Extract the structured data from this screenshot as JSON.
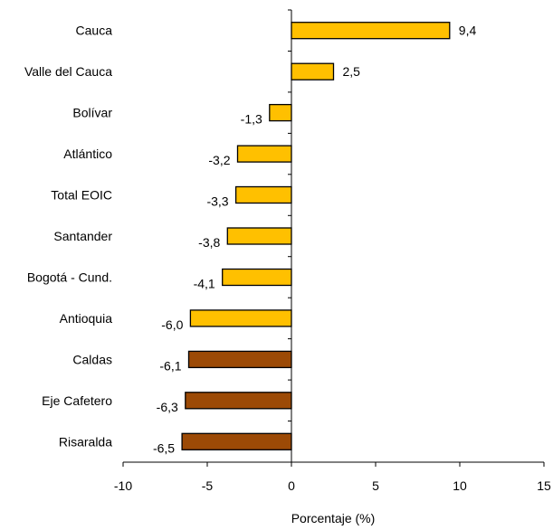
{
  "chart_data": {
    "type": "bar",
    "orientation": "horizontal",
    "categories": [
      "Cauca",
      "Valle del Cauca",
      "Bolívar",
      "Atlántico",
      "Total EOIC",
      "Santander",
      "Bogotá - Cund.",
      "Antioquia",
      "Caldas",
      "Eje Cafetero",
      "Risaralda"
    ],
    "values": [
      9.4,
      2.5,
      -1.3,
      -3.2,
      -3.3,
      -3.8,
      -4.1,
      -6.0,
      -6.1,
      -6.3,
      -6.5
    ],
    "value_labels": [
      "9,4",
      "2,5",
      "-1,3",
      "-3,2",
      "-3,3",
      "-3,8",
      "-4,1",
      "-6,0",
      "-6,1",
      "-6,3",
      "-6,5"
    ],
    "bar_colors": [
      "#FFC000",
      "#FFC000",
      "#FFC000",
      "#FFC000",
      "#FFC000",
      "#FFC000",
      "#FFC000",
      "#FFC000",
      "#9C4A06",
      "#9C4A06",
      "#9C4A06"
    ],
    "xlim": [
      -10,
      15
    ],
    "xticks": [
      -10,
      -5,
      0,
      5,
      10,
      15
    ],
    "xlabel": "Porcentaje (%)",
    "ylabel": "",
    "title": "",
    "grid": false,
    "legend": "none"
  }
}
